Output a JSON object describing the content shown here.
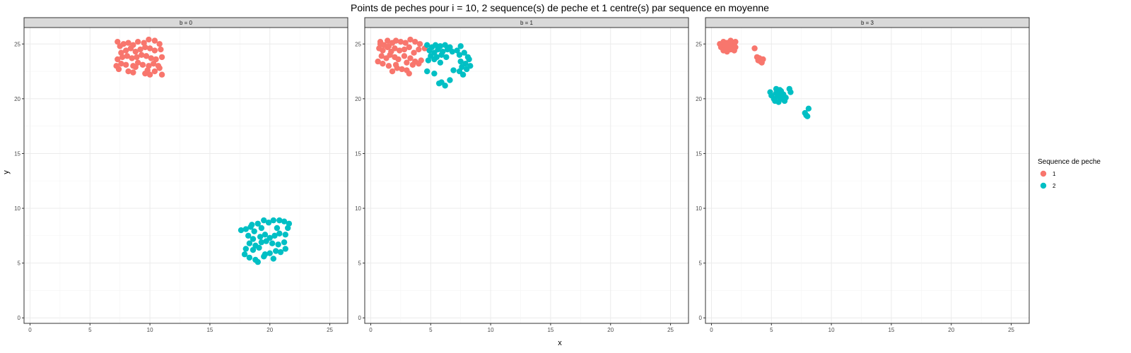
{
  "chart_data": {
    "type": "scatter",
    "title": "Points de peches pour i = 10, 2 sequence(s) de peche et 1 centre(s) par sequence en moyenne",
    "xlabel": "x",
    "ylabel": "y",
    "xlim": [
      -0.5,
      26.5
    ],
    "ylim": [
      -0.5,
      26.5
    ],
    "x_ticks": [
      0,
      5,
      10,
      15,
      20,
      25
    ],
    "y_ticks": [
      0,
      5,
      10,
      15,
      20,
      25
    ],
    "grid": true,
    "legend": {
      "title": "Sequence de peche",
      "position": "right",
      "entries": [
        {
          "label": "1",
          "color": "#F8766D"
        },
        {
          "label": "2",
          "color": "#00BFC4"
        }
      ]
    },
    "panels": [
      {
        "strip": "b = 0",
        "series": [
          {
            "name": "1",
            "points": [
              [
                7.3,
                25.2
              ],
              [
                7.5,
                24.8
              ],
              [
                7.8,
                25.0
              ],
              [
                8.2,
                25.1
              ],
              [
                8.6,
                24.9
              ],
              [
                9.0,
                25.2
              ],
              [
                9.5,
                25.1
              ],
              [
                9.9,
                25.4
              ],
              [
                10.4,
                25.3
              ],
              [
                10.8,
                25.0
              ],
              [
                7.6,
                24.2
              ],
              [
                8.0,
                24.4
              ],
              [
                8.4,
                24.6
              ],
              [
                8.8,
                24.3
              ],
              [
                9.2,
                24.5
              ],
              [
                9.6,
                24.7
              ],
              [
                10.0,
                24.6
              ],
              [
                10.4,
                24.4
              ],
              [
                10.9,
                24.5
              ],
              [
                7.3,
                23.6
              ],
              [
                7.7,
                23.8
              ],
              [
                8.1,
                23.9
              ],
              [
                8.5,
                23.7
              ],
              [
                8.9,
                23.8
              ],
              [
                9.3,
                24.0
              ],
              [
                9.7,
                23.9
              ],
              [
                10.1,
                23.7
              ],
              [
                10.5,
                23.6
              ],
              [
                11.0,
                23.8
              ],
              [
                7.2,
                23.0
              ],
              [
                7.6,
                23.2
              ],
              [
                8.0,
                23.1
              ],
              [
                8.6,
                23.0
              ],
              [
                9.0,
                23.3
              ],
              [
                9.4,
                23.1
              ],
              [
                9.9,
                23.0
              ],
              [
                10.3,
                23.2
              ],
              [
                10.7,
                23.0
              ],
              [
                7.4,
                22.7
              ],
              [
                8.2,
                22.5
              ],
              [
                8.6,
                22.4
              ],
              [
                9.6,
                22.3
              ],
              [
                10.0,
                22.2
              ],
              [
                10.4,
                22.5
              ],
              [
                11.0,
                22.2
              ],
              [
                10.8,
                22.8
              ],
              [
                9.8,
                22.6
              ],
              [
                8.8,
                22.9
              ]
            ]
          },
          {
            "name": "2",
            "points": [
              [
                17.6,
                8.0
              ],
              [
                18.0,
                8.1
              ],
              [
                18.4,
                8.3
              ],
              [
                18.7,
                7.9
              ],
              [
                19.0,
                8.6
              ],
              [
                19.5,
                8.9
              ],
              [
                19.9,
                8.7
              ],
              [
                20.3,
                8.9
              ],
              [
                20.8,
                8.9
              ],
              [
                21.2,
                8.8
              ],
              [
                21.6,
                8.6
              ],
              [
                18.2,
                7.5
              ],
              [
                18.6,
                7.2
              ],
              [
                19.2,
                7.4
              ],
              [
                19.6,
                7.6
              ],
              [
                20.0,
                7.3
              ],
              [
                20.4,
                7.5
              ],
              [
                20.8,
                7.7
              ],
              [
                21.3,
                7.6
              ],
              [
                21.5,
                8.2
              ],
              [
                18.3,
                6.8
              ],
              [
                18.8,
                6.6
              ],
              [
                19.3,
                6.9
              ],
              [
                19.7,
                7.0
              ],
              [
                20.2,
                6.8
              ],
              [
                20.7,
                6.7
              ],
              [
                21.2,
                6.9
              ],
              [
                18.0,
                6.3
              ],
              [
                18.6,
                6.2
              ],
              [
                19.1,
                6.4
              ],
              [
                19.6,
                5.8
              ],
              [
                20.0,
                5.9
              ],
              [
                20.5,
                6.1
              ],
              [
                20.9,
                6.0
              ],
              [
                21.3,
                6.3
              ],
              [
                17.9,
                5.8
              ],
              [
                18.3,
                5.5
              ],
              [
                18.8,
                5.3
              ],
              [
                19.0,
                5.1
              ],
              [
                19.5,
                5.6
              ],
              [
                20.3,
                5.4
              ],
              [
                18.5,
                8.5
              ],
              [
                19.3,
                8.2
              ],
              [
                20.6,
                8.2
              ]
            ]
          }
        ]
      },
      {
        "strip": "b = 1",
        "series": [
          {
            "name": "1",
            "points": [
              [
                0.8,
                25.2
              ],
              [
                1.1,
                24.9
              ],
              [
                1.4,
                25.3
              ],
              [
                1.8,
                25.1
              ],
              [
                2.1,
                25.3
              ],
              [
                2.5,
                25.2
              ],
              [
                2.9,
                25.1
              ],
              [
                3.3,
                25.4
              ],
              [
                3.7,
                25.2
              ],
              [
                4.1,
                25.0
              ],
              [
                0.7,
                24.6
              ],
              [
                1.0,
                24.4
              ],
              [
                1.4,
                24.7
              ],
              [
                1.7,
                24.3
              ],
              [
                2.0,
                24.6
              ],
              [
                2.4,
                24.4
              ],
              [
                2.8,
                24.5
              ],
              [
                3.2,
                24.7
              ],
              [
                3.6,
                24.2
              ],
              [
                4.0,
                24.5
              ],
              [
                0.9,
                23.9
              ],
              [
                1.3,
                23.7
              ],
              [
                1.6,
                24.0
              ],
              [
                2.0,
                23.8
              ],
              [
                2.3,
                23.6
              ],
              [
                2.8,
                23.9
              ],
              [
                3.3,
                23.7
              ],
              [
                3.7,
                23.4
              ],
              [
                4.2,
                23.5
              ],
              [
                0.6,
                23.4
              ],
              [
                1.0,
                23.2
              ],
              [
                1.5,
                23.0
              ],
              [
                2.1,
                23.1
              ],
              [
                2.6,
                22.7
              ],
              [
                3.0,
                23.3
              ],
              [
                3.5,
                23.1
              ],
              [
                4.0,
                23.2
              ],
              [
                1.8,
                22.5
              ],
              [
                2.2,
                22.8
              ],
              [
                3.0,
                22.6
              ],
              [
                3.2,
                22.3
              ],
              [
                4.5,
                24.6
              ],
              [
                0.8,
                25.0
              ],
              [
                1.5,
                24.8
              ]
            ]
          },
          {
            "name": "2",
            "points": [
              [
                4.7,
                24.9
              ],
              [
                5.1,
                24.7
              ],
              [
                5.4,
                24.9
              ],
              [
                5.8,
                24.8
              ],
              [
                6.2,
                24.9
              ],
              [
                6.6,
                24.7
              ],
              [
                4.9,
                24.4
              ],
              [
                5.3,
                24.2
              ],
              [
                5.6,
                24.5
              ],
              [
                6.0,
                24.3
              ],
              [
                6.4,
                24.5
              ],
              [
                6.8,
                24.3
              ],
              [
                7.2,
                24.4
              ],
              [
                5.0,
                23.9
              ],
              [
                5.5,
                23.8
              ],
              [
                5.9,
                24.0
              ],
              [
                6.3,
                23.8
              ],
              [
                4.8,
                23.5
              ],
              [
                5.3,
                23.6
              ],
              [
                5.8,
                23.3
              ],
              [
                7.4,
                24.0
              ],
              [
                7.8,
                24.2
              ],
              [
                8.1,
                23.8
              ],
              [
                7.5,
                23.4
              ],
              [
                7.9,
                23.2
              ],
              [
                8.2,
                23.6
              ],
              [
                7.6,
                22.9
              ],
              [
                8.0,
                22.7
              ],
              [
                7.7,
                22.2
              ],
              [
                7.4,
                22.5
              ],
              [
                8.3,
                23.0
              ],
              [
                5.9,
                21.5
              ],
              [
                6.2,
                21.2
              ],
              [
                5.7,
                21.4
              ],
              [
                6.6,
                21.7
              ],
              [
                4.7,
                22.5
              ],
              [
                5.3,
                22.3
              ],
              [
                6.9,
                22.6
              ],
              [
                7.5,
                24.8
              ]
            ]
          }
        ]
      },
      {
        "strip": "b = 3",
        "series": [
          {
            "name": "1",
            "points": [
              [
                0.7,
                25.0
              ],
              [
                1.0,
                25.2
              ],
              [
                1.3,
                25.1
              ],
              [
                1.6,
                25.3
              ],
              [
                1.9,
                25.0
              ],
              [
                2.0,
                25.2
              ],
              [
                0.8,
                24.7
              ],
              [
                1.1,
                24.8
              ],
              [
                1.4,
                24.6
              ],
              [
                1.7,
                24.8
              ],
              [
                2.0,
                24.7
              ],
              [
                1.0,
                24.4
              ],
              [
                1.3,
                24.3
              ],
              [
                1.6,
                24.5
              ],
              [
                1.9,
                24.4
              ],
              [
                1.5,
                25.0
              ],
              [
                1.2,
                24.9
              ],
              [
                3.6,
                24.6
              ],
              [
                3.8,
                23.8
              ],
              [
                3.9,
                23.5
              ],
              [
                4.1,
                23.4
              ],
              [
                4.3,
                23.6
              ],
              [
                4.2,
                23.3
              ],
              [
                4.0,
                23.7
              ]
            ]
          },
          {
            "name": "2",
            "points": [
              [
                5.0,
                20.3
              ],
              [
                5.2,
                20.0
              ],
              [
                5.4,
                20.5
              ],
              [
                5.6,
                20.2
              ],
              [
                5.8,
                20.7
              ],
              [
                6.0,
                20.4
              ],
              [
                5.3,
                19.8
              ],
              [
                5.6,
                19.7
              ],
              [
                5.9,
                20.0
              ],
              [
                6.2,
                20.1
              ],
              [
                6.5,
                20.9
              ],
              [
                6.6,
                20.6
              ],
              [
                4.9,
                20.6
              ],
              [
                5.4,
                20.9
              ],
              [
                5.7,
                20.8
              ],
              [
                6.1,
                19.8
              ],
              [
                5.5,
                20.4
              ],
              [
                5.8,
                20.3
              ],
              [
                8.1,
                19.1
              ],
              [
                7.9,
                18.5
              ],
              [
                7.8,
                18.7
              ],
              [
                8.0,
                18.4
              ]
            ]
          }
        ]
      }
    ]
  }
}
